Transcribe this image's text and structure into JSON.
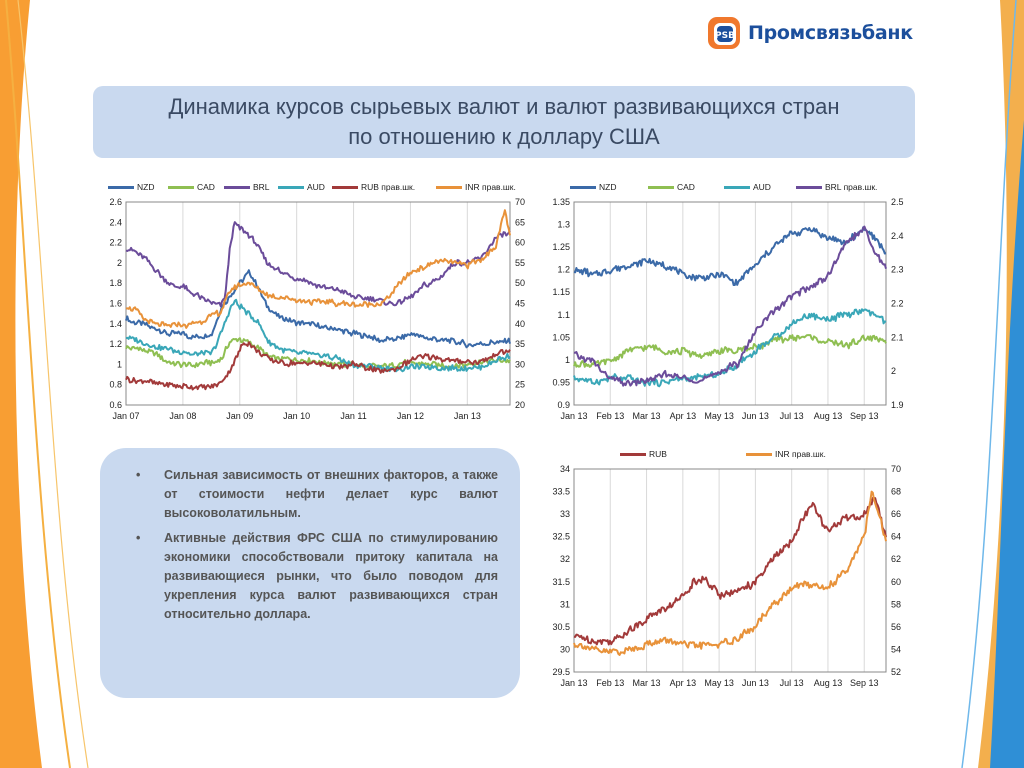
{
  "brand": {
    "name": "Промсвязьбанк",
    "logo_icon": "psb-logo-icon"
  },
  "title": {
    "line1": "Динамика курсов сырьевых валют и валют развивающихся стран",
    "line2": "по отношению к доллару США"
  },
  "bullets": [
    "Сильная зависимость от внешних факторов, а также от стоимости нефти делает курс валют высоковолатильным.",
    "Активные действия ФРС США по стимулированию экономики способствовали притоку капитала на развивающиеся рынки, что было поводом для укрепления курса валют развивающихся стран относительно доллара."
  ],
  "colors": {
    "nzd": "#3b6aa8",
    "cad": "#8fbf52",
    "brl": "#6b4c9a",
    "aud": "#3aa7b8",
    "rub": "#a23a3a",
    "inr": "#e8923a",
    "brand_blue": "#1c4f9c",
    "brand_orange": "#f0782d"
  },
  "chart_data": [
    {
      "type": "line",
      "left_axis": {
        "ylim": [
          0.6,
          2.6
        ],
        "ticks": [
          "0.6",
          "0.8",
          "1",
          "1.2",
          "1.4",
          "1.6",
          "1.8",
          "2",
          "2.2",
          "2.4",
          "2.6"
        ]
      },
      "right_axis": {
        "ylim": [
          20,
          70
        ],
        "ticks": [
          "20",
          "25",
          "30",
          "35",
          "40",
          "45",
          "50",
          "55",
          "60",
          "65",
          "70"
        ]
      },
      "x_ticks": [
        "Jan 07",
        "Jan 08",
        "Jan 09",
        "Jan 10",
        "Jan 11",
        "Jan 12",
        "Jan 13"
      ],
      "x_range": [
        0,
        81
      ],
      "x_tick_pos": [
        0,
        12,
        24,
        36,
        48,
        60,
        72
      ],
      "series": [
        {
          "name": "NZD",
          "color": "#3b6aa8",
          "axis": "left",
          "x": [
            0,
            3,
            6,
            9,
            12,
            14,
            16,
            18,
            20,
            22,
            24,
            26,
            28,
            30,
            33,
            36,
            39,
            42,
            45,
            48,
            51,
            54,
            57,
            60,
            63,
            66,
            69,
            72,
            75,
            78,
            81
          ],
          "values": [
            1.45,
            1.4,
            1.35,
            1.3,
            1.3,
            1.26,
            1.28,
            1.3,
            1.55,
            1.68,
            1.8,
            1.9,
            1.75,
            1.55,
            1.45,
            1.4,
            1.4,
            1.36,
            1.35,
            1.3,
            1.27,
            1.24,
            1.25,
            1.3,
            1.27,
            1.24,
            1.22,
            1.2,
            1.2,
            1.22,
            1.23
          ]
        },
        {
          "name": "CAD",
          "color": "#8fbf52",
          "axis": "left",
          "x": [
            0,
            3,
            6,
            9,
            12,
            15,
            18,
            20,
            22,
            24,
            26,
            28,
            30,
            33,
            36,
            39,
            42,
            45,
            48,
            51,
            54,
            57,
            60,
            63,
            66,
            69,
            72,
            75,
            78,
            81
          ],
          "values": [
            1.17,
            1.15,
            1.12,
            1.02,
            1.0,
            1.0,
            1.02,
            1.05,
            1.22,
            1.25,
            1.22,
            1.15,
            1.08,
            1.05,
            1.05,
            1.03,
            1.02,
            1.0,
            1.0,
            0.98,
            0.97,
            1.0,
            1.02,
            1.0,
            0.99,
            0.99,
            1.0,
            1.02,
            1.03,
            1.04
          ]
        },
        {
          "name": "BRL",
          "color": "#6b4c9a",
          "axis": "left",
          "x": [
            0,
            2,
            4,
            6,
            8,
            10,
            12,
            14,
            16,
            18,
            20,
            21,
            22,
            23,
            24,
            25,
            26,
            28,
            30,
            33,
            36,
            39,
            42,
            45,
            48,
            51,
            54,
            57,
            60,
            63,
            66,
            69,
            72,
            75,
            78,
            81
          ],
          "values": [
            2.15,
            2.1,
            2.05,
            1.95,
            1.85,
            1.78,
            1.76,
            1.7,
            1.66,
            1.6,
            1.58,
            1.7,
            2.2,
            2.4,
            2.35,
            2.3,
            2.28,
            2.15,
            2.0,
            1.9,
            1.85,
            1.8,
            1.76,
            1.72,
            1.67,
            1.65,
            1.62,
            1.6,
            1.65,
            1.78,
            1.85,
            2.0,
            2.0,
            2.05,
            2.25,
            2.3
          ]
        },
        {
          "name": "AUD",
          "color": "#3aa7b8",
          "axis": "left",
          "x": [
            0,
            3,
            6,
            9,
            12,
            14,
            16,
            18,
            20,
            22,
            23,
            24,
            26,
            28,
            30,
            33,
            36,
            39,
            42,
            45,
            48,
            51,
            54,
            57,
            60,
            63,
            66,
            69,
            72,
            75,
            78,
            81
          ],
          "values": [
            1.27,
            1.22,
            1.18,
            1.15,
            1.13,
            1.1,
            1.12,
            1.1,
            1.3,
            1.55,
            1.62,
            1.58,
            1.5,
            1.4,
            1.22,
            1.15,
            1.12,
            1.1,
            1.08,
            1.06,
            1.0,
            0.98,
            0.97,
            0.95,
            0.97,
            0.98,
            0.97,
            0.96,
            0.96,
            0.98,
            1.05,
            1.08
          ]
        },
        {
          "name": "RUB прав.шк.",
          "color": "#a23a3a",
          "axis": "right",
          "x": [
            0,
            3,
            6,
            9,
            12,
            15,
            18,
            20,
            22,
            24,
            25,
            26,
            28,
            30,
            33,
            36,
            39,
            42,
            45,
            48,
            51,
            54,
            57,
            60,
            63,
            66,
            69,
            72,
            75,
            78,
            81
          ],
          "values": [
            26.5,
            26.0,
            25.6,
            25.0,
            24.5,
            24.2,
            24.5,
            25.5,
            28.5,
            33.5,
            35.5,
            35.0,
            33.0,
            31.5,
            30.5,
            30.0,
            30.5,
            30.0,
            29.5,
            30.0,
            29.0,
            28.5,
            28.8,
            31.0,
            32.0,
            31.5,
            31.0,
            30.5,
            30.5,
            32.5,
            33.0
          ]
        },
        {
          "name": "INR прав.шк.",
          "color": "#e8923a",
          "axis": "right",
          "x": [
            0,
            2,
            4,
            6,
            8,
            10,
            12,
            14,
            16,
            18,
            20,
            22,
            24,
            26,
            28,
            30,
            33,
            36,
            39,
            42,
            45,
            48,
            51,
            54,
            57,
            60,
            63,
            66,
            69,
            72,
            75,
            78,
            80,
            81
          ],
          "values": [
            44.0,
            43.5,
            41.0,
            40.0,
            39.5,
            39.8,
            39.5,
            40.0,
            40.5,
            42.0,
            43.0,
            48.5,
            49.5,
            50.0,
            48.5,
            47.0,
            46.5,
            46.0,
            45.5,
            45.5,
            45.0,
            45.0,
            44.5,
            45.0,
            49.0,
            52.5,
            54.0,
            55.5,
            55.0,
            54.5,
            56.0,
            59.0,
            68.0,
            61.5
          ]
        }
      ]
    },
    {
      "type": "line",
      "left_axis": {
        "ylim": [
          0.9,
          1.35
        ],
        "ticks": [
          "0.9",
          "0.95",
          "1",
          "1.05",
          "1.1",
          "1.15",
          "1.2",
          "1.25",
          "1.3",
          "1.35"
        ]
      },
      "right_axis": {
        "ylim": [
          1.9,
          2.5
        ],
        "ticks": [
          "1.9",
          "2",
          "2.1",
          "2.2",
          "2.3",
          "2.4",
          "2.5"
        ]
      },
      "x_ticks": [
        "Jan 13",
        "Feb 13",
        "Mar 13",
        "Apr 13",
        "May 13",
        "Jun 13",
        "Jul 13",
        "Aug 13",
        "Sep 13"
      ],
      "x_range": [
        0,
        8.6
      ],
      "x_tick_pos": [
        0,
        1,
        2,
        3,
        4,
        5,
        6,
        7,
        8
      ],
      "series": [
        {
          "name": "NZD",
          "color": "#3b6aa8",
          "axis": "left",
          "x": [
            0,
            0.5,
            1,
            1.5,
            2,
            2.5,
            3,
            3.5,
            4,
            4.5,
            5,
            5.5,
            6,
            6.5,
            7,
            7.5,
            8,
            8.3,
            8.6
          ],
          "values": [
            1.2,
            1.19,
            1.2,
            1.21,
            1.22,
            1.21,
            1.19,
            1.18,
            1.19,
            1.17,
            1.21,
            1.25,
            1.28,
            1.29,
            1.27,
            1.26,
            1.29,
            1.27,
            1.24
          ]
        },
        {
          "name": "CAD",
          "color": "#8fbf52",
          "axis": "left",
          "x": [
            0,
            0.5,
            1,
            1.5,
            2,
            2.5,
            3,
            3.5,
            4,
            4.5,
            5,
            5.5,
            6,
            6.5,
            7,
            7.5,
            8,
            8.3,
            8.6
          ],
          "values": [
            0.99,
            0.99,
            1.0,
            1.02,
            1.03,
            1.02,
            1.02,
            1.01,
            1.02,
            1.02,
            1.03,
            1.04,
            1.05,
            1.05,
            1.04,
            1.03,
            1.05,
            1.05,
            1.04
          ]
        },
        {
          "name": "AUD",
          "color": "#3aa7b8",
          "axis": "left",
          "x": [
            0,
            0.5,
            1,
            1.5,
            2,
            2.5,
            3,
            3.5,
            4,
            4.5,
            5,
            5.5,
            6,
            6.5,
            7,
            7.5,
            8,
            8.3,
            8.6
          ],
          "values": [
            0.96,
            0.95,
            0.96,
            0.96,
            0.95,
            0.95,
            0.96,
            0.96,
            0.97,
            0.99,
            1.02,
            1.05,
            1.08,
            1.1,
            1.09,
            1.1,
            1.11,
            1.1,
            1.08
          ]
        },
        {
          "name": "BRL прав.шк.",
          "color": "#6b4c9a",
          "axis": "right",
          "x": [
            0,
            0.5,
            1,
            1.5,
            2,
            2.5,
            3,
            3.5,
            4,
            4.5,
            5,
            5.5,
            6,
            6.5,
            7,
            7.5,
            8,
            8.3,
            8.6
          ],
          "values": [
            2.05,
            2.03,
            1.98,
            1.96,
            1.97,
            1.99,
            1.98,
            1.97,
            2.0,
            2.02,
            2.12,
            2.18,
            2.22,
            2.25,
            2.28,
            2.38,
            2.42,
            2.35,
            2.31
          ]
        }
      ]
    },
    {
      "type": "line",
      "left_axis": {
        "ylim": [
          29.5,
          34
        ],
        "ticks": [
          "29.5",
          "30",
          "30.5",
          "31",
          "31.5",
          "32",
          "32.5",
          "33",
          "33.5",
          "34"
        ]
      },
      "right_axis": {
        "ylim": [
          52,
          70
        ],
        "ticks": [
          "52",
          "54",
          "56",
          "58",
          "60",
          "62",
          "64",
          "66",
          "68",
          "70"
        ]
      },
      "x_ticks": [
        "Jan 13",
        "Feb 13",
        "Mar 13",
        "Apr 13",
        "May 13",
        "Jun 13",
        "Jul 13",
        "Aug 13",
        "Sep 13"
      ],
      "x_range": [
        0,
        8.6
      ],
      "x_tick_pos": [
        0,
        1,
        2,
        3,
        4,
        5,
        6,
        7,
        8
      ],
      "series": [
        {
          "name": "RUB",
          "color": "#a23a3a",
          "axis": "left",
          "x": [
            0,
            0.5,
            1,
            1.5,
            2,
            2.5,
            3,
            3.3,
            3.6,
            4,
            4.5,
            5,
            5.5,
            6,
            6.3,
            6.6,
            7,
            7.5,
            8,
            8.3,
            8.6
          ],
          "values": [
            30.3,
            30.2,
            30.2,
            30.4,
            30.7,
            30.9,
            31.2,
            31.5,
            31.6,
            31.2,
            31.3,
            31.5,
            32.0,
            32.4,
            32.9,
            33.2,
            32.6,
            32.9,
            33.0,
            33.4,
            32.5
          ]
        },
        {
          "name": "INR прав.шк.",
          "color": "#e8923a",
          "axis": "right",
          "x": [
            0,
            0.5,
            1,
            1.5,
            2,
            2.5,
            3,
            3.5,
            4,
            4.5,
            5,
            5.5,
            6,
            6.5,
            7,
            7.5,
            8,
            8.2,
            8.4,
            8.6
          ],
          "values": [
            54.5,
            54.0,
            53.8,
            54.0,
            54.5,
            54.8,
            54.5,
            54.3,
            54.5,
            55.0,
            56.0,
            58.0,
            59.5,
            59.8,
            59.5,
            61.0,
            64.0,
            68.0,
            66.0,
            63.5
          ]
        }
      ]
    }
  ]
}
